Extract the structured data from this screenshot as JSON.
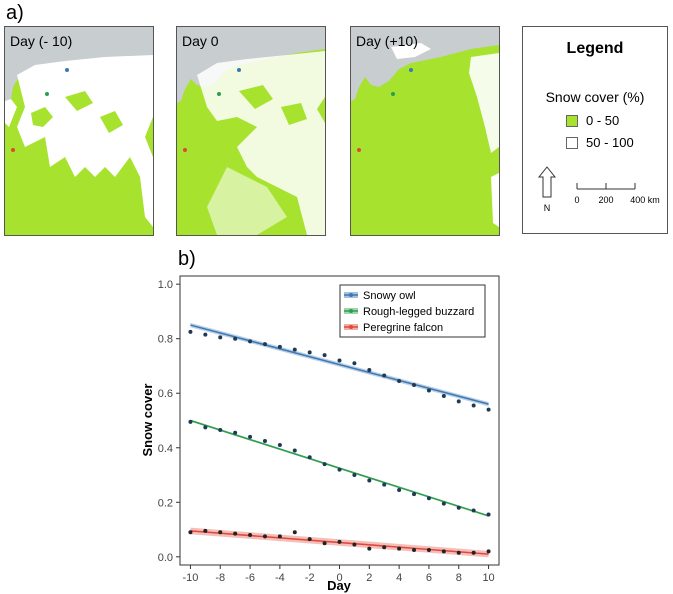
{
  "panels": {
    "a_label": "a)",
    "b_label": "b)"
  },
  "maps": [
    {
      "title": "Day (- 10)"
    },
    {
      "title": "Day 0"
    },
    {
      "title": "Day (+10)"
    }
  ],
  "map_legend": {
    "title": "Legend",
    "subtitle": "Snow cover (%)",
    "items": [
      {
        "label": "0 - 50",
        "color": "#a6e22e"
      },
      {
        "label": "50 - 100",
        "color": "#ffffff"
      }
    ],
    "north_label": "N",
    "scale_labels": [
      "0",
      "200",
      "400 km"
    ]
  },
  "colors": {
    "land_low_snow": "#a6e22e",
    "water": "#c8cdcf",
    "snowy_owl": "#3c78b4",
    "rough_legged_buzzard": "#2e9e4e",
    "peregrine_falcon": "#e0483a"
  },
  "chart_data": {
    "type": "line",
    "xlabel": "Day",
    "ylabel": "Snow cover",
    "xlim": [
      -10.7,
      10.7
    ],
    "ylim": [
      -0.03,
      1.03
    ],
    "x_ticks": [
      -10,
      -8,
      -6,
      -4,
      -2,
      0,
      2,
      4,
      6,
      8,
      10
    ],
    "x_tick_labels": [
      "-10",
      "-8",
      "-6",
      "-4",
      "-2",
      "0",
      "2",
      "4",
      "6",
      "8",
      "10"
    ],
    "y_ticks": [
      0,
      0.2,
      0.4,
      0.6,
      0.8,
      1.0
    ],
    "y_tick_labels": [
      "0.0",
      "0.2",
      "0.4",
      "0.6",
      "0.8",
      "1.0"
    ],
    "grid": false,
    "legend_position": "top-right",
    "x": [
      -10,
      -9,
      -8,
      -7,
      -6,
      -5,
      -4,
      -3,
      -2,
      -1,
      0,
      1,
      2,
      3,
      4,
      5,
      6,
      7,
      8,
      9,
      10
    ],
    "series": [
      {
        "name": "Snowy owl",
        "color": "#3c78b4",
        "points": [
          0.825,
          0.815,
          0.805,
          0.8,
          0.79,
          0.78,
          0.77,
          0.76,
          0.75,
          0.74,
          0.72,
          0.71,
          0.685,
          0.665,
          0.645,
          0.63,
          0.61,
          0.59,
          0.57,
          0.555,
          0.54
        ],
        "fit": [
          0.85,
          0.56
        ],
        "band": 0.008
      },
      {
        "name": "Rough-legged buzzard",
        "color": "#2e9e4e",
        "points": [
          0.495,
          0.475,
          0.465,
          0.455,
          0.44,
          0.425,
          0.41,
          0.39,
          0.365,
          0.34,
          0.32,
          0.3,
          0.28,
          0.265,
          0.245,
          0.23,
          0.215,
          0.195,
          0.18,
          0.17,
          0.155
        ],
        "fit": [
          0.5,
          0.15
        ],
        "band": 0.004
      },
      {
        "name": "Peregrine falcon",
        "color": "#e0483a",
        "points": [
          0.09,
          0.095,
          0.09,
          0.085,
          0.08,
          0.075,
          0.075,
          0.09,
          0.065,
          0.05,
          0.055,
          0.045,
          0.03,
          0.035,
          0.03,
          0.025,
          0.025,
          0.02,
          0.015,
          0.015,
          0.02
        ],
        "fit": [
          0.095,
          0.01
        ],
        "band": 0.012
      }
    ]
  }
}
